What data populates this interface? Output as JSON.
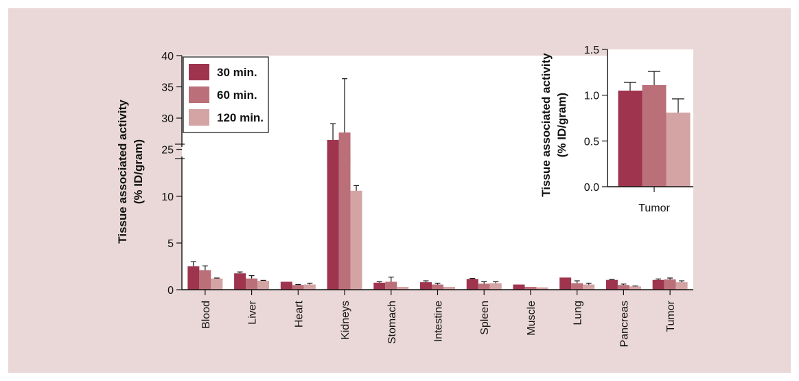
{
  "colors": {
    "panel_background": "#ead8d8",
    "plot_background": "#ffffff",
    "series_30": "#9e344d",
    "series_60": "#bb6f78",
    "series_120": "#d4a3a4",
    "error_bar": "#111111"
  },
  "chart_data": [
    {
      "type": "bar",
      "title": "",
      "xlabel": "",
      "ylabel": [
        "Tissue associated activity",
        "(% ID/gram)"
      ],
      "broken_axis": true,
      "ylim_lower": [
        0,
        12.5
      ],
      "ylim_upper": [
        23.3,
        40
      ],
      "yticks_lower": [
        "0",
        "5",
        "10"
      ],
      "yticks_upper": [
        "25",
        "30",
        "35",
        "40"
      ],
      "legend_placement": "top-left",
      "categories": [
        "Blood",
        "Liver",
        "Heart",
        "Kidneys",
        "Stomach",
        "Intestine",
        "Spleen",
        "Muscle",
        "Lung",
        "Pancreas",
        "Tumor"
      ],
      "series": [
        {
          "name": "30 min.",
          "color": "#9e344d",
          "values": [
            2.5,
            1.75,
            0.85,
            26.5,
            0.75,
            0.8,
            1.15,
            0.55,
            1.3,
            1.05,
            1.05
          ],
          "errors": [
            0.5,
            0.15,
            0.0,
            2.6,
            0.1,
            0.15,
            0.05,
            0.0,
            0.0,
            0.05,
            0.1
          ]
        },
        {
          "name": "60 min.",
          "color": "#bb6f78",
          "values": [
            2.1,
            1.2,
            0.5,
            27.7,
            0.85,
            0.55,
            0.65,
            0.3,
            0.7,
            0.5,
            1.1
          ],
          "errors": [
            0.45,
            0.3,
            0.05,
            8.6,
            0.5,
            0.15,
            0.2,
            0.0,
            0.25,
            0.1,
            0.15
          ]
        },
        {
          "name": "120 min.",
          "color": "#d4a3a4",
          "values": [
            1.2,
            0.95,
            0.55,
            10.6,
            0.3,
            0.3,
            0.7,
            0.25,
            0.55,
            0.35,
            0.8
          ],
          "errors": [
            0.05,
            0.05,
            0.15,
            0.55,
            0.0,
            0.0,
            0.15,
            0.0,
            0.15,
            0.05,
            0.15
          ]
        }
      ]
    },
    {
      "type": "bar",
      "title": "",
      "xlabel": "",
      "ylabel": [
        "Tissue associated activity",
        "(% ID/gram)"
      ],
      "ylim": [
        0,
        1.5
      ],
      "yticks": [
        "0.0",
        "0.5",
        "1.0",
        "1.5"
      ],
      "categories": [
        "Tumor"
      ],
      "series": [
        {
          "name": "30 min.",
          "color": "#9e344d",
          "values": [
            1.05
          ],
          "errors": [
            0.09
          ]
        },
        {
          "name": "60 min.",
          "color": "#bb6f78",
          "values": [
            1.11
          ],
          "errors": [
            0.15
          ]
        },
        {
          "name": "120 min.",
          "color": "#d4a3a4",
          "values": [
            0.81
          ],
          "errors": [
            0.15
          ]
        }
      ]
    }
  ]
}
